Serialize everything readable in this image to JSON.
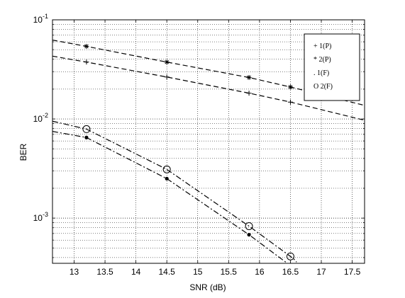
{
  "chart_data": {
    "type": "line",
    "xlabel": "SNR (dB)",
    "ylabel": "BER",
    "xlim": [
      12.65,
      17.7
    ],
    "ylim": [
      0.00035,
      0.1
    ],
    "yscale": "log",
    "grid": true,
    "x_ticks": [
      "13",
      "13.5",
      "14",
      "14.5",
      "15",
      "15.5",
      "16",
      "16.5",
      "17",
      "17.5"
    ],
    "y_ticks": [
      {
        "value": 0.1,
        "base": "10",
        "exp": "-1"
      },
      {
        "value": 0.01,
        "base": "10",
        "exp": "-2"
      },
      {
        "value": 0.001,
        "base": "10",
        "exp": "-3"
      }
    ],
    "legend_position": "top-right",
    "series": [
      {
        "name": "1(P)",
        "legend_symbol": "+",
        "marker": "+",
        "line_style": "dashed",
        "x": [
          12.65,
          13.2,
          14.5,
          15.83,
          16.5,
          17.7
        ],
        "y": [
          0.043,
          0.0375,
          0.0265,
          0.0182,
          0.0148,
          0.0097
        ]
      },
      {
        "name": "2(P)",
        "legend_symbol": "*",
        "marker": "*",
        "line_style": "dashed",
        "x": [
          12.65,
          13.2,
          14.5,
          15.83,
          16.5,
          17.7
        ],
        "y": [
          0.0625,
          0.054,
          0.0375,
          0.0262,
          0.021,
          0.0137
        ]
      },
      {
        "name": "1(F)",
        "legend_symbol": ".",
        "marker": "dot",
        "line_style": "dashdot",
        "x": [
          12.65,
          13.2,
          14.5,
          15.83,
          16.45
        ],
        "y": [
          0.0075,
          0.0065,
          0.0025,
          0.00068,
          0.00035
        ]
      },
      {
        "name": "2(F)",
        "legend_symbol": "O",
        "marker": "circle",
        "line_style": "dashdot",
        "x": [
          12.65,
          13.2,
          14.5,
          15.83,
          16.55,
          16.6
        ],
        "y": [
          0.0095,
          0.0079,
          0.0031,
          0.00083,
          0.00039,
          0.00036
        ]
      }
    ],
    "marker_x": [
      13.2,
      14.5,
      15.83,
      16.5
    ]
  }
}
